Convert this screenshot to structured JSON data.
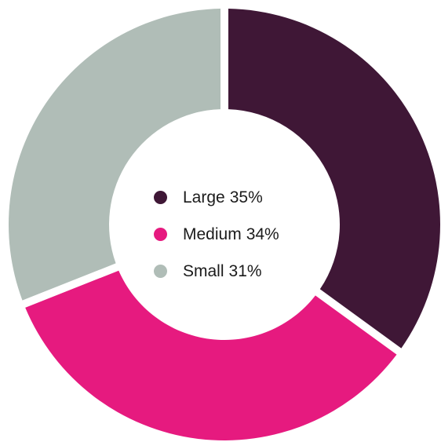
{
  "chart_data": {
    "type": "pie",
    "style": "donut",
    "series": [
      {
        "name": "Large",
        "value": 35,
        "label": "35%",
        "color": "#3f1736"
      },
      {
        "name": "Medium",
        "value": 34,
        "label": "34%",
        "color": "#e61a7f"
      },
      {
        "name": "Small",
        "value": 31,
        "label": "31%",
        "color": "#b0bdb7"
      }
    ],
    "legend_placement": "center",
    "title": "",
    "background": "#ffffff"
  },
  "legend": {
    "items": [
      {
        "name": "Large",
        "pct": "35%",
        "color": "#3f1736"
      },
      {
        "name": "Medium",
        "pct": "34%",
        "color": "#e61a7f"
      },
      {
        "name": "Small",
        "pct": "31%",
        "color": "#b0bdb7"
      }
    ]
  }
}
